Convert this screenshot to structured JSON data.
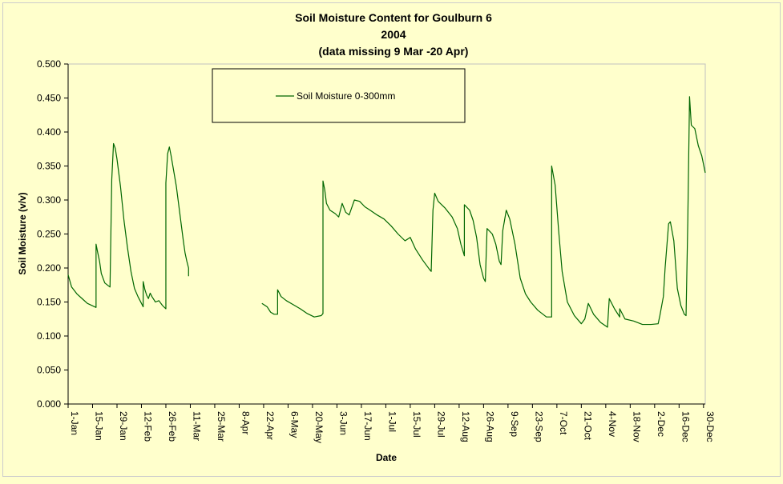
{
  "chart_data": {
    "type": "line",
    "title": "Soil Moisture Content for Goulburn 6",
    "subtitle_lines": [
      "2004",
      "(data missing 9 Mar -20 Apr)"
    ],
    "xlabel": "Date",
    "ylabel": "Soil Moisture (v/v)",
    "ylim": [
      0,
      0.5
    ],
    "y_ticks": [
      "0.000",
      "0.050",
      "0.100",
      "0.150",
      "0.200",
      "0.250",
      "0.300",
      "0.350",
      "0.400",
      "0.450",
      "0.500"
    ],
    "x_range": [
      "2004-01-01",
      "2004-12-31"
    ],
    "x_ticks": [
      {
        "date": "2004-01-01",
        "label": "1-Jan"
      },
      {
        "date": "2004-01-15",
        "label": "15-Jan"
      },
      {
        "date": "2004-01-29",
        "label": "29-Jan"
      },
      {
        "date": "2004-02-12",
        "label": "12-Feb"
      },
      {
        "date": "2004-02-26",
        "label": "26-Feb"
      },
      {
        "date": "2004-03-11",
        "label": "11-Mar"
      },
      {
        "date": "2004-03-25",
        "label": "25-Mar"
      },
      {
        "date": "2004-04-08",
        "label": "8-Apr"
      },
      {
        "date": "2004-04-22",
        "label": "22-Apr"
      },
      {
        "date": "2004-05-06",
        "label": "6-May"
      },
      {
        "date": "2004-05-20",
        "label": "20-May"
      },
      {
        "date": "2004-06-03",
        "label": "3-Jun"
      },
      {
        "date": "2004-06-17",
        "label": "17-Jun"
      },
      {
        "date": "2004-07-01",
        "label": "1-Jul"
      },
      {
        "date": "2004-07-15",
        "label": "15-Jul"
      },
      {
        "date": "2004-07-29",
        "label": "29-Jul"
      },
      {
        "date": "2004-08-12",
        "label": "12-Aug"
      },
      {
        "date": "2004-08-26",
        "label": "26-Aug"
      },
      {
        "date": "2004-09-09",
        "label": "9-Sep"
      },
      {
        "date": "2004-09-23",
        "label": "23-Sep"
      },
      {
        "date": "2004-10-07",
        "label": "7-Oct"
      },
      {
        "date": "2004-10-21",
        "label": "21-Oct"
      },
      {
        "date": "2004-11-04",
        "label": "4-Nov"
      },
      {
        "date": "2004-11-18",
        "label": "18-Nov"
      },
      {
        "date": "2004-12-02",
        "label": "2-Dec"
      },
      {
        "date": "2004-12-16",
        "label": "16-Dec"
      },
      {
        "date": "2004-12-30",
        "label": "30-Dec"
      }
    ],
    "grid": false,
    "legend": {
      "position": "top-center"
    },
    "series": [
      {
        "name": "Soil Moisture 0-300mm",
        "color": "#006600",
        "segments": [
          [
            [
              "2004-01-01",
              0.19
            ],
            [
              "2004-01-03",
              0.172
            ],
            [
              "2004-01-06",
              0.162
            ],
            [
              "2004-01-09",
              0.155
            ],
            [
              "2004-01-12",
              0.148
            ],
            [
              "2004-01-17",
              0.142
            ],
            [
              "2004-01-17",
              0.235
            ],
            [
              "2004-01-18",
              0.222
            ],
            [
              "2004-01-19",
              0.21
            ],
            [
              "2004-01-20",
              0.192
            ],
            [
              "2004-01-22",
              0.178
            ],
            [
              "2004-01-25",
              0.172
            ],
            [
              "2004-01-26",
              0.33
            ],
            [
              "2004-01-27",
              0.383
            ],
            [
              "2004-01-28",
              0.376
            ],
            [
              "2004-01-29",
              0.36
            ],
            [
              "2004-01-31",
              0.32
            ],
            [
              "2004-02-02",
              0.27
            ],
            [
              "2004-02-04",
              0.23
            ],
            [
              "2004-02-06",
              0.195
            ],
            [
              "2004-02-08",
              0.17
            ],
            [
              "2004-02-10",
              0.158
            ],
            [
              "2004-02-12",
              0.148
            ],
            [
              "2004-02-13",
              0.143
            ],
            [
              "2004-02-13",
              0.18
            ],
            [
              "2004-02-14",
              0.168
            ],
            [
              "2004-02-15",
              0.16
            ],
            [
              "2004-02-16",
              0.155
            ],
            [
              "2004-02-17",
              0.163
            ],
            [
              "2004-02-18",
              0.158
            ],
            [
              "2004-02-20",
              0.15
            ],
            [
              "2004-02-22",
              0.152
            ],
            [
              "2004-02-24",
              0.145
            ],
            [
              "2004-02-26",
              0.14
            ],
            [
              "2004-02-26",
              0.325
            ],
            [
              "2004-02-27",
              0.368
            ],
            [
              "2004-02-28",
              0.378
            ],
            [
              "2004-02-29",
              0.365
            ],
            [
              "2004-03-01",
              0.35
            ],
            [
              "2004-03-03",
              0.32
            ],
            [
              "2004-03-05",
              0.28
            ],
            [
              "2004-03-07",
              0.24
            ],
            [
              "2004-03-08",
              0.222
            ],
            [
              "2004-03-09",
              0.21
            ],
            [
              "2004-03-10",
              0.2
            ],
            [
              "2004-03-10",
              0.188
            ]
          ],
          [
            [
              "2004-04-21",
              0.148
            ],
            [
              "2004-04-24",
              0.143
            ],
            [
              "2004-04-26",
              0.135
            ],
            [
              "2004-04-28",
              0.132
            ],
            [
              "2004-04-30",
              0.132
            ],
            [
              "2004-04-30",
              0.168
            ],
            [
              "2004-05-02",
              0.158
            ],
            [
              "2004-05-05",
              0.152
            ],
            [
              "2004-05-09",
              0.146
            ],
            [
              "2004-05-13",
              0.14
            ],
            [
              "2004-05-17",
              0.133
            ],
            [
              "2004-05-21",
              0.128
            ],
            [
              "2004-05-25",
              0.13
            ],
            [
              "2004-05-26",
              0.133
            ],
            [
              "2004-05-26",
              0.328
            ],
            [
              "2004-05-27",
              0.315
            ],
            [
              "2004-05-28",
              0.295
            ],
            [
              "2004-05-30",
              0.285
            ],
            [
              "2004-06-02",
              0.28
            ],
            [
              "2004-06-04",
              0.275
            ],
            [
              "2004-06-06",
              0.295
            ],
            [
              "2004-06-08",
              0.282
            ],
            [
              "2004-06-10",
              0.278
            ],
            [
              "2004-06-13",
              0.3
            ],
            [
              "2004-06-16",
              0.298
            ],
            [
              "2004-06-19",
              0.29
            ],
            [
              "2004-06-22",
              0.285
            ],
            [
              "2004-06-26",
              0.278
            ],
            [
              "2004-06-30",
              0.272
            ],
            [
              "2004-07-04",
              0.262
            ],
            [
              "2004-07-08",
              0.25
            ],
            [
              "2004-07-12",
              0.24
            ],
            [
              "2004-07-15",
              0.245
            ],
            [
              "2004-07-18",
              0.228
            ],
            [
              "2004-07-22",
              0.212
            ],
            [
              "2004-07-26",
              0.198
            ],
            [
              "2004-07-27",
              0.195
            ],
            [
              "2004-07-28",
              0.285
            ],
            [
              "2004-07-29",
              0.31
            ],
            [
              "2004-07-31",
              0.298
            ],
            [
              "2004-08-04",
              0.288
            ],
            [
              "2004-08-08",
              0.275
            ],
            [
              "2004-08-11",
              0.258
            ],
            [
              "2004-08-13",
              0.235
            ],
            [
              "2004-08-15",
              0.218
            ],
            [
              "2004-08-15",
              0.293
            ],
            [
              "2004-08-18",
              0.285
            ],
            [
              "2004-08-20",
              0.27
            ],
            [
              "2004-08-22",
              0.245
            ],
            [
              "2004-08-24",
              0.205
            ],
            [
              "2004-08-26",
              0.185
            ],
            [
              "2004-08-27",
              0.18
            ],
            [
              "2004-08-28",
              0.258
            ],
            [
              "2004-08-31",
              0.25
            ],
            [
              "2004-09-02",
              0.235
            ],
            [
              "2004-09-04",
              0.21
            ],
            [
              "2004-09-05",
              0.205
            ],
            [
              "2004-09-06",
              0.255
            ],
            [
              "2004-09-08",
              0.285
            ],
            [
              "2004-09-10",
              0.272
            ],
            [
              "2004-09-13",
              0.235
            ],
            [
              "2004-09-16",
              0.185
            ],
            [
              "2004-09-19",
              0.162
            ],
            [
              "2004-09-22",
              0.15
            ],
            [
              "2004-09-26",
              0.138
            ],
            [
              "2004-10-01",
              0.128
            ],
            [
              "2004-10-04",
              0.128
            ],
            [
              "2004-10-04",
              0.35
            ],
            [
              "2004-10-06",
              0.322
            ],
            [
              "2004-10-08",
              0.255
            ],
            [
              "2004-10-10",
              0.195
            ],
            [
              "2004-10-13",
              0.15
            ],
            [
              "2004-10-17",
              0.13
            ],
            [
              "2004-10-21",
              0.118
            ],
            [
              "2004-10-23",
              0.125
            ],
            [
              "2004-10-25",
              0.148
            ],
            [
              "2004-10-28",
              0.132
            ],
            [
              "2004-11-01",
              0.12
            ],
            [
              "2004-11-05",
              0.113
            ],
            [
              "2004-11-06",
              0.155
            ],
            [
              "2004-11-09",
              0.14
            ],
            [
              "2004-11-12",
              0.128
            ],
            [
              "2004-11-12",
              0.14
            ],
            [
              "2004-11-15",
              0.125
            ],
            [
              "2004-11-20",
              0.122
            ],
            [
              "2004-11-25",
              0.117
            ],
            [
              "2004-11-30",
              0.117
            ],
            [
              "2004-12-04",
              0.118
            ],
            [
              "2004-12-05",
              0.13
            ],
            [
              "2004-12-07",
              0.158
            ],
            [
              "2004-12-08",
              0.2
            ],
            [
              "2004-12-10",
              0.265
            ],
            [
              "2004-12-11",
              0.268
            ],
            [
              "2004-12-13",
              0.24
            ],
            [
              "2004-12-15",
              0.17
            ],
            [
              "2004-12-17",
              0.145
            ],
            [
              "2004-12-19",
              0.132
            ],
            [
              "2004-12-20",
              0.13
            ],
            [
              "2004-12-21",
              0.27
            ],
            [
              "2004-12-22",
              0.452
            ],
            [
              "2004-12-23",
              0.41
            ],
            [
              "2004-12-25",
              0.405
            ],
            [
              "2004-12-27",
              0.38
            ],
            [
              "2004-12-29",
              0.365
            ],
            [
              "2004-12-31",
              0.34
            ]
          ]
        ]
      }
    ]
  }
}
